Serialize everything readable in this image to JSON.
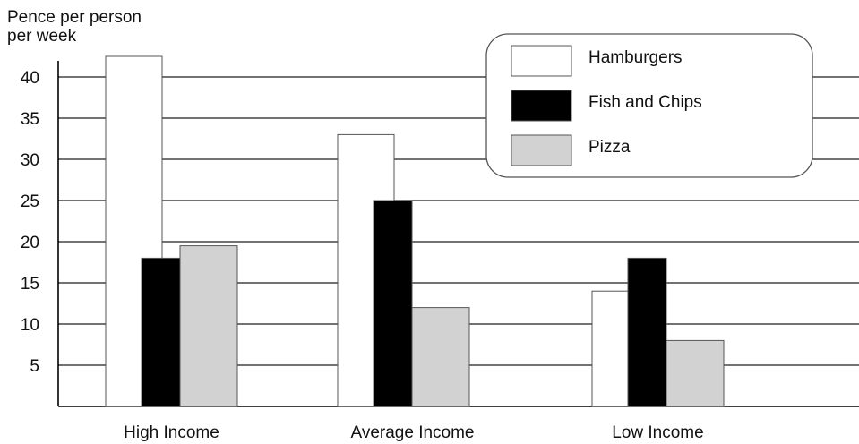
{
  "chart_data": {
    "type": "bar",
    "title": "",
    "ylabel_lines": [
      "Pence per person",
      "per week"
    ],
    "xlabel": "",
    "categories": [
      "High Income",
      "Average Income",
      "Low Income"
    ],
    "series": [
      {
        "name": "Hamburgers",
        "values": [
          42.5,
          33,
          14
        ],
        "color": "#ffffff"
      },
      {
        "name": "Fish and Chips",
        "values": [
          18,
          25,
          18
        ],
        "color": "#000000"
      },
      {
        "name": "Pizza",
        "values": [
          19.5,
          12,
          8
        ],
        "color": "#d2d2d2"
      }
    ],
    "ylim": [
      0,
      42.5
    ],
    "yticks": [
      5,
      10,
      15,
      20,
      25,
      30,
      35,
      40
    ],
    "grid": true,
    "legend_position": "top-right"
  }
}
